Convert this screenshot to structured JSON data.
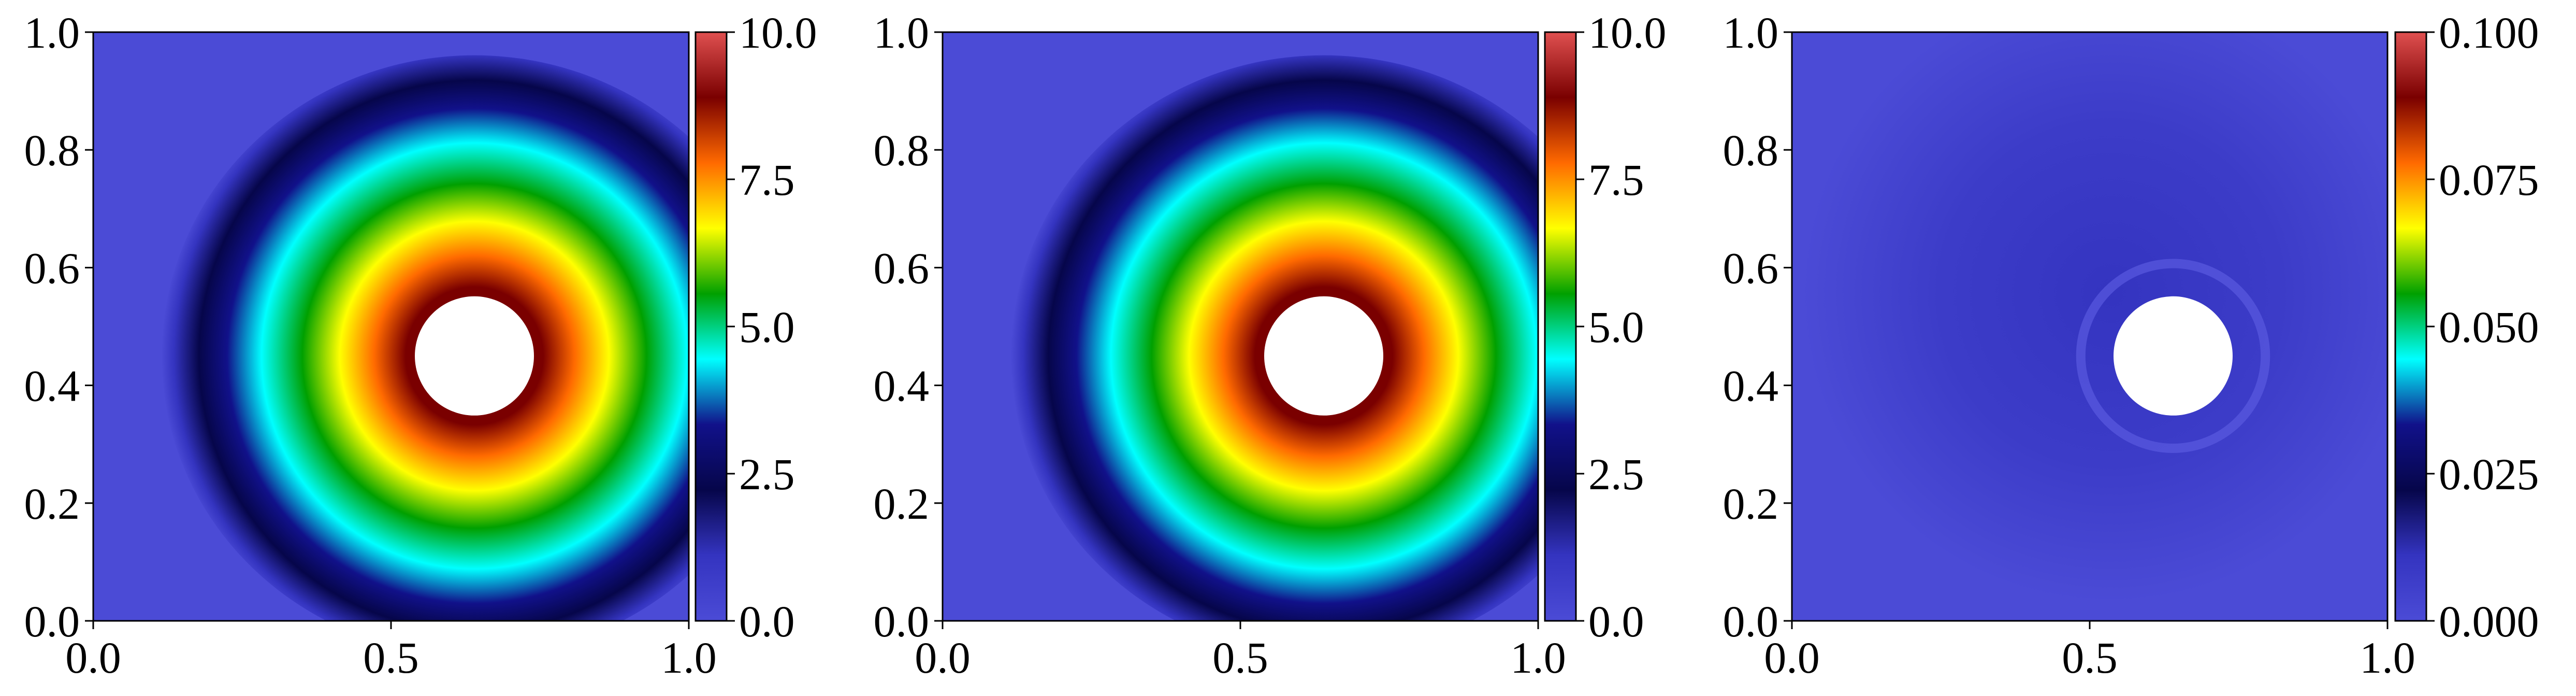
{
  "colors": {
    "colormap": [
      "#4b4bd6",
      "#3434c0",
      "#06064a",
      "#11118a",
      "#00ffff",
      "#00a000",
      "#ffff00",
      "#ff6a00",
      "#7a0000",
      "#e05050"
    ],
    "hole": "#ffffff",
    "axis": "#000000"
  },
  "chart_data": [
    {
      "type": "heatmap",
      "title": "",
      "xlabel": "",
      "ylabel": "",
      "xlim": [
        0.0,
        1.0
      ],
      "ylim": [
        0.0,
        1.0
      ],
      "xticks": [
        "0.0",
        "0.5",
        "1.0"
      ],
      "yticks": [
        "0.0",
        "0.2",
        "0.4",
        "0.6",
        "0.8",
        "1.0"
      ],
      "colorbar": {
        "range": [
          0.0,
          10.0
        ],
        "ticks": [
          "0.0",
          "2.5",
          "5.0",
          "7.5",
          "10.0"
        ]
      },
      "field": {
        "shape": "ring",
        "center": [
          0.64,
          0.45
        ],
        "hole_radius": 0.1,
        "peak": 10.0,
        "decay_radius": 0.37
      },
      "grid": false
    },
    {
      "type": "heatmap",
      "title": "",
      "xlabel": "",
      "ylabel": "",
      "xlim": [
        0.0,
        1.0
      ],
      "ylim": [
        0.0,
        1.0
      ],
      "xticks": [
        "0.0",
        "0.5",
        "1.0"
      ],
      "yticks": [
        "0.0",
        "0.2",
        "0.4",
        "0.6",
        "0.8",
        "1.0"
      ],
      "colorbar": {
        "range": [
          0.0,
          10.0
        ],
        "ticks": [
          "0.0",
          "2.5",
          "5.0",
          "7.5",
          "10.0"
        ]
      },
      "field": {
        "shape": "ring",
        "center": [
          0.64,
          0.45
        ],
        "hole_radius": 0.1,
        "peak": 10.0,
        "decay_radius": 0.37
      },
      "grid": false
    },
    {
      "type": "heatmap",
      "title": "",
      "xlabel": "",
      "ylabel": "",
      "xlim": [
        0.0,
        1.0
      ],
      "ylim": [
        0.0,
        1.0
      ],
      "xticks": [
        "0.0",
        "0.5",
        "1.0"
      ],
      "yticks": [
        "0.0",
        "0.2",
        "0.4",
        "0.6",
        "0.8",
        "1.0"
      ],
      "colorbar": {
        "range": [
          0.0,
          0.1
        ],
        "ticks": [
          "0.000",
          "0.025",
          "0.050",
          "0.075",
          "0.100"
        ]
      },
      "field": {
        "shape": "error",
        "center": [
          0.64,
          0.45
        ],
        "hole_radius": 0.1,
        "peak": 0.02,
        "decay_radius": 0.37
      },
      "grid": false
    }
  ]
}
